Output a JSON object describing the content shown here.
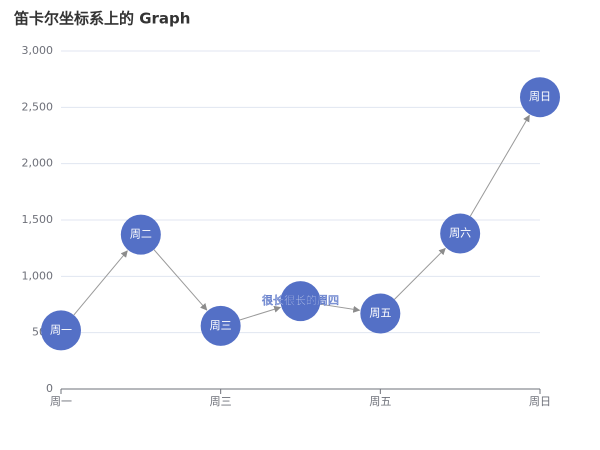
{
  "chart_data": {
    "type": "graph",
    "title": "笛卡尔坐标系上的 Graph",
    "categories": [
      "周一",
      "周二",
      "周三",
      "很长很长的周四",
      "周五",
      "周六",
      "周日"
    ],
    "values": [
      520,
      1370,
      560,
      780,
      670,
      1380,
      2590
    ],
    "color": "#5470c6",
    "ylim": [
      0,
      3000
    ],
    "yticks": [
      0,
      500,
      {
        "value": 1000,
        "label": "1,000"
      },
      {
        "value": 1500,
        "label": "1,500"
      },
      {
        "value": 2000,
        "label": "2,000"
      },
      {
        "value": 2500,
        "label": "2,500"
      },
      {
        "value": 3000,
        "label": "3,000"
      }
    ],
    "grid": true
  }
}
